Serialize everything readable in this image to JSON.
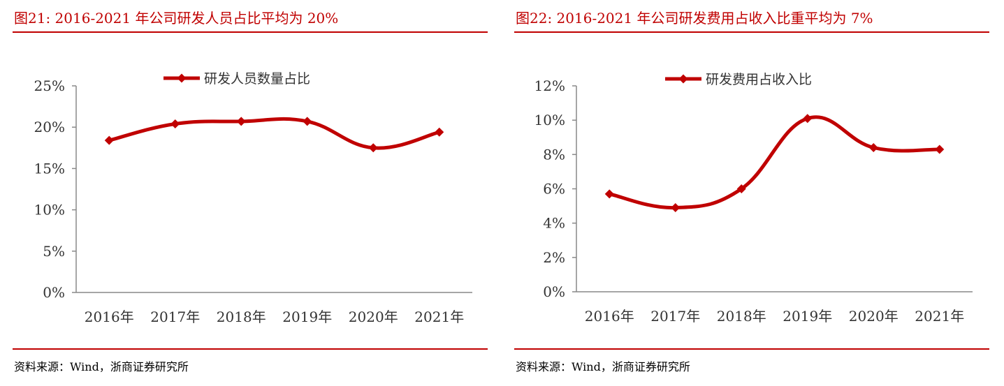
{
  "colors": {
    "accent": "#c00000",
    "series": "#c00000",
    "axis": "#888888",
    "text": "#333333"
  },
  "figures": [
    {
      "title": "图21:  2016-2021 年公司研发人员占比平均为 20%",
      "source": "资料来源：Wind，浙商证券研究所"
    },
    {
      "title": "图22:  2016-2021 年公司研发费用占收入比重平均为 7%",
      "source": "资料来源：Wind，浙商证券研究所"
    }
  ],
  "chart_data": [
    {
      "type": "line",
      "categories": [
        "2016年",
        "2017年",
        "2018年",
        "2019年",
        "2020年",
        "2021年"
      ],
      "series": [
        {
          "name": "研发人员数量占比",
          "values": [
            18.4,
            20.4,
            20.7,
            20.7,
            17.5,
            19.4
          ]
        }
      ],
      "ylim": [
        0,
        25
      ],
      "yticks": [
        0,
        5,
        10,
        15,
        20,
        25
      ],
      "ytick_labels": [
        "0%",
        "5%",
        "10%",
        "15%",
        "20%",
        "25%"
      ],
      "legend": "top-center",
      "grid": false
    },
    {
      "type": "line",
      "categories": [
        "2016年",
        "2017年",
        "2018年",
        "2019年",
        "2020年",
        "2021年"
      ],
      "series": [
        {
          "name": "研发费用占收入比",
          "values": [
            5.7,
            4.9,
            6.0,
            10.1,
            8.4,
            8.3
          ]
        }
      ],
      "ylim": [
        0,
        12
      ],
      "yticks": [
        0,
        2,
        4,
        6,
        8,
        10,
        12
      ],
      "ytick_labels": [
        "0%",
        "2%",
        "4%",
        "6%",
        "8%",
        "10%",
        "12%"
      ],
      "legend": "top-center",
      "grid": false
    }
  ]
}
